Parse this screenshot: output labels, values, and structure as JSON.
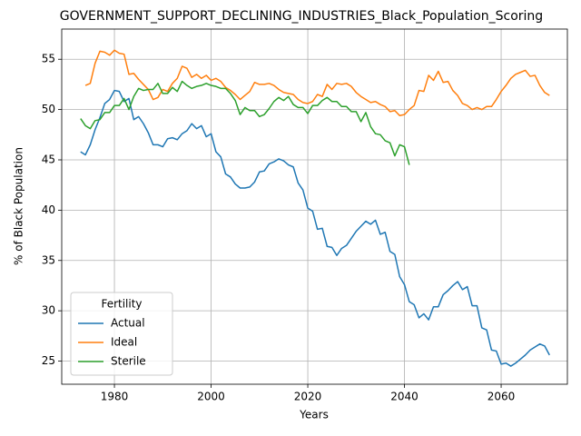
{
  "chart_data": {
    "type": "line",
    "title": "GOVERNMENT_SUPPORT_DECLINING_INDUSTRIES_Black_Population_Scoring",
    "xlabel": "Years",
    "ylabel": "% of Black Population",
    "x": [
      1973,
      1974,
      1975,
      1976,
      1977,
      1978,
      1979,
      1980,
      1981,
      1982,
      1983,
      1984,
      1985,
      1986,
      1987,
      1988,
      1989,
      1990,
      1991,
      1992,
      1993,
      1994,
      1995,
      1996,
      1997,
      1998,
      1999,
      2000,
      2001,
      2002,
      2003,
      2004,
      2005,
      2006,
      2007,
      2008,
      2009,
      2010,
      2011,
      2012,
      2013,
      2014,
      2015,
      2016,
      2017,
      2018,
      2019,
      2020,
      2021,
      2022,
      2023,
      2024,
      2025,
      2026,
      2027,
      2028,
      2029,
      2030,
      2031,
      2032,
      2033,
      2034,
      2035,
      2036,
      2037,
      2038,
      2039,
      2040,
      2041,
      2042,
      2043,
      2044,
      2045,
      2046,
      2047,
      2048,
      2049,
      2050,
      2051,
      2052,
      2053,
      2054,
      2055,
      2056,
      2057,
      2058,
      2059,
      2060,
      2061,
      2062,
      2063,
      2064,
      2065,
      2066,
      2067,
      2068,
      2069,
      2070
    ],
    "series": [
      {
        "name": "Actual",
        "color": "#1f77b4",
        "values": [
          45.8,
          45.5,
          46.5,
          48.0,
          49.2,
          50.6,
          51.0,
          51.9,
          51.8,
          50.8,
          51.1,
          49.0,
          49.3,
          48.6,
          47.7,
          46.5,
          46.5,
          46.3,
          47.1,
          47.2,
          47.0,
          47.6,
          47.9,
          48.6,
          48.1,
          48.4,
          47.3,
          47.6,
          45.8,
          45.3,
          43.6,
          43.3,
          42.6,
          42.2,
          42.2,
          42.3,
          42.8,
          43.8,
          43.9,
          44.6,
          44.8,
          45.1,
          44.9,
          44.5,
          44.3,
          42.7,
          42.0,
          40.2,
          39.9,
          38.1,
          38.2,
          36.4,
          36.3,
          35.5,
          36.2,
          36.5,
          37.2,
          37.9,
          38.4,
          38.9,
          38.6,
          39.0,
          37.6,
          37.8,
          35.9,
          35.6,
          33.4,
          32.6,
          30.9,
          30.6,
          29.3,
          29.7,
          29.1,
          30.4,
          30.4,
          31.6,
          32.0,
          32.5,
          32.9,
          32.1,
          32.4,
          30.5,
          30.5,
          28.3,
          28.1,
          26.1,
          26.0,
          24.7,
          24.8,
          24.5,
          24.8,
          25.2,
          25.6,
          26.1,
          26.4,
          26.7,
          26.5,
          25.6
        ]
      },
      {
        "name": "Ideal",
        "color": "#ff7f0e",
        "values": [
          null,
          52.4,
          52.6,
          54.6,
          55.8,
          55.7,
          55.4,
          55.9,
          55.6,
          55.5,
          53.5,
          53.6,
          53.0,
          52.5,
          52.0,
          51.0,
          51.2,
          52.0,
          51.8,
          52.6,
          53.1,
          54.3,
          54.1,
          53.2,
          53.5,
          53.1,
          53.4,
          52.9,
          53.1,
          52.8,
          52.2,
          51.9,
          51.5,
          51.0,
          51.4,
          51.8,
          52.7,
          52.5,
          52.5,
          52.6,
          52.4,
          52.0,
          51.7,
          51.6,
          51.5,
          51.0,
          50.7,
          50.6,
          50.8,
          51.5,
          51.3,
          52.5,
          52.0,
          52.6,
          52.5,
          52.6,
          52.3,
          51.7,
          51.3,
          51.0,
          50.7,
          50.8,
          50.5,
          50.3,
          49.8,
          49.9,
          49.4,
          49.5,
          50.0,
          50.4,
          51.9,
          51.8,
          53.4,
          52.9,
          53.8,
          52.7,
          52.8,
          51.9,
          51.4,
          50.6,
          50.4,
          50.0,
          50.2,
          50.0,
          50.3,
          50.3,
          51.0,
          51.8,
          52.4,
          53.1,
          53.5,
          53.7,
          53.9,
          53.3,
          53.4,
          52.4,
          51.7,
          51.4
        ]
      },
      {
        "name": "Sterile",
        "color": "#2ca02c",
        "values": [
          49.1,
          48.4,
          48.1,
          48.9,
          49.0,
          49.7,
          49.7,
          50.4,
          50.4,
          51.1,
          50.0,
          51.3,
          52.1,
          51.9,
          52.0,
          52.0,
          52.6,
          51.6,
          51.6,
          52.2,
          51.8,
          52.8,
          52.4,
          52.1,
          52.3,
          52.4,
          52.6,
          52.4,
          52.3,
          52.1,
          52.1,
          51.6,
          50.9,
          49.5,
          50.2,
          49.9,
          49.9,
          49.3,
          49.5,
          50.1,
          50.8,
          51.2,
          50.9,
          51.3,
          50.5,
          50.2,
          50.2,
          49.6,
          50.4,
          50.4,
          50.9,
          51.2,
          50.8,
          50.8,
          50.3,
          50.3,
          49.8,
          49.8,
          48.8,
          49.7,
          48.3,
          47.6,
          47.5,
          46.9,
          46.7,
          45.4,
          46.5,
          46.3,
          44.5,
          null,
          null,
          null,
          null,
          null,
          null,
          null,
          null,
          null,
          null,
          null,
          null,
          null,
          null,
          null,
          null,
          null,
          null,
          null,
          null,
          null,
          null,
          null,
          null,
          null,
          null,
          null,
          null,
          null
        ]
      }
    ],
    "legend_title": "Fertility",
    "legend": "lower left",
    "xlim": [
      1969.1,
      2073.7
    ],
    "ylim": [
      22.7,
      58.0
    ],
    "xticks": [
      1980,
      2000,
      2020,
      2040,
      2060
    ],
    "yticks": [
      25,
      30,
      35,
      40,
      45,
      50,
      55
    ],
    "grid": true
  }
}
